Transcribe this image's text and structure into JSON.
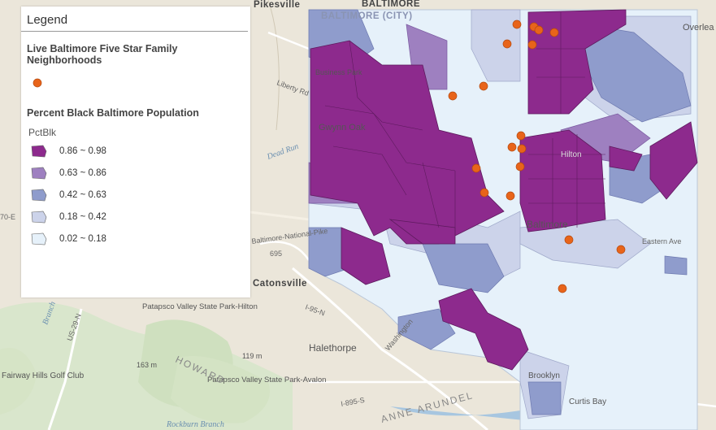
{
  "legend": {
    "title": "Legend",
    "layer1_title": "Live Baltimore Five Star Family Neighborhoods",
    "layer2_title": "Percent Black Baltimore Population",
    "field": "PctBlk",
    "classes": [
      {
        "label": "0.86 ~ 0.98",
        "color": "#8d2a8d"
      },
      {
        "label": "0.63 ~ 0.86",
        "color": "#9e80c0"
      },
      {
        "label": "0.42 ~ 0.63",
        "color": "#8f9ccc"
      },
      {
        "label": "0.18 ~ 0.42",
        "color": "#ccd3ea"
      },
      {
        "label": "0.02 ~ 0.18",
        "color": "#e6f1fa"
      }
    ],
    "marker_color": "#e8641a"
  },
  "map": {
    "places": {
      "pikesville": "Pikesville",
      "baltimore_north": "BALTIMORE",
      "baltimore_city": "BALTIMORE (CITY)",
      "overlea": "Overlea",
      "gwynn_oak": "Gwynn Oak",
      "catonsville": "Catonsville",
      "halethorpe": "Halethorpe",
      "baltimore_center": "Baltimore",
      "patapsco_hilton": "Patapsco Valley State Park-Hilton",
      "patapsco_avalon": "Patapsco Valley State Park-Avalon",
      "howard": "HOWARD",
      "anne_arundel": "ANNE ARUNDEL",
      "fairway_hills": "Fairway Hills Golf Club",
      "brooklyn": "Brooklyn",
      "curtis_bay": "Curtis Bay",
      "hilton": "Hilton",
      "business_park": "Business Park",
      "elev_119": "119 m",
      "elev_163": "163 m"
    },
    "roads": {
      "liberty": "Liberty Rd",
      "national_pike": "Baltimore-National-Pike",
      "i695": "695",
      "i95": "I-95-N",
      "i95s": "I-895-S",
      "us29": "US-29-N",
      "i70": "70-E",
      "washington": "Washington",
      "eastern": "Eastern Ave"
    },
    "water": {
      "dead_run": "Dead Run",
      "rockburn": "Rockburn Branch",
      "patapsco": "Branch"
    }
  }
}
